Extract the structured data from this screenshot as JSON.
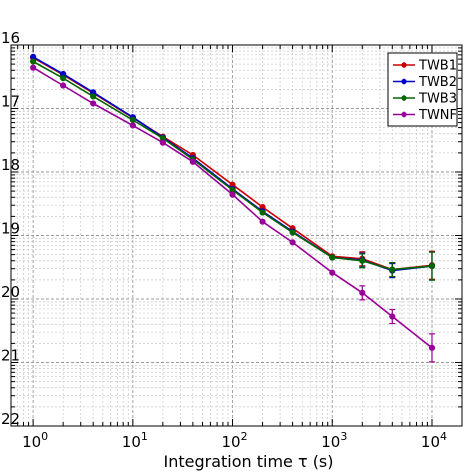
{
  "chart_data": {
    "type": "line",
    "xscale": "log",
    "yscale": "log",
    "xlim": [
      0.6,
      20000
    ],
    "ylim": [
      1e-22,
      1e-16
    ],
    "xlabel": "Integration time τ (s)",
    "ylabel": "",
    "title": "",
    "grid": true,
    "legend_placement": "top-right",
    "x_tick_labels": [
      "10",
      "10",
      "10",
      "10",
      "10"
    ],
    "x_tick_exponents": [
      "0",
      "1",
      "2",
      "3",
      "4"
    ],
    "y_tick_labels_visible": [
      "16",
      "17",
      "18",
      "19",
      "20",
      "21",
      "22"
    ],
    "series": [
      {
        "name": "TWB1",
        "color": "#cc0000",
        "x": [
          1,
          2,
          4,
          10,
          20,
          40,
          100,
          200,
          400,
          1000,
          2000,
          4000,
          10000
        ],
        "y": [
          6.3e-17,
          3.4e-17,
          1.75e-17,
          7.2e-18,
          3.6e-18,
          1.85e-18,
          6.3e-19,
          2.8e-19,
          1.3e-19,
          4.7e-20,
          4.3e-20,
          2.9e-20,
          3.4e-20
        ]
      },
      {
        "name": "TWB2",
        "color": "#0000cc",
        "x": [
          1,
          2,
          4,
          10,
          20,
          40,
          100,
          200,
          400,
          1000,
          2000,
          4000,
          10000
        ],
        "y": [
          6.5e-17,
          3.5e-17,
          1.8e-17,
          7.3e-18,
          3.5e-18,
          1.65e-18,
          5.4e-19,
          2.4e-19,
          1.15e-19,
          4.5e-20,
          4.1e-20,
          2.8e-20,
          3.3e-20
        ]
      },
      {
        "name": "TWB3",
        "color": "#006600",
        "x": [
          1,
          2,
          4,
          10,
          20,
          40,
          100,
          200,
          400,
          1000,
          2000,
          4000,
          10000
        ],
        "y": [
          5.5e-17,
          3e-17,
          1.55e-17,
          6.6e-18,
          3.4e-18,
          1.58e-18,
          5.2e-19,
          2.3e-19,
          1.12e-19,
          4.5e-20,
          4e-20,
          2.9e-20,
          3.3e-20
        ]
      },
      {
        "name": "TWNF",
        "color": "#990099",
        "x": [
          1,
          2,
          4,
          10,
          20,
          40,
          100,
          200,
          400,
          1000,
          2000,
          4000,
          10000
        ],
        "y": [
          4.4e-17,
          2.3e-17,
          1.2e-17,
          5.4e-18,
          2.9e-18,
          1.45e-18,
          4.4e-19,
          1.65e-19,
          7.8e-20,
          2.6e-20,
          1.25e-20,
          5.3e-21,
          1.7e-21
        ]
      }
    ]
  }
}
